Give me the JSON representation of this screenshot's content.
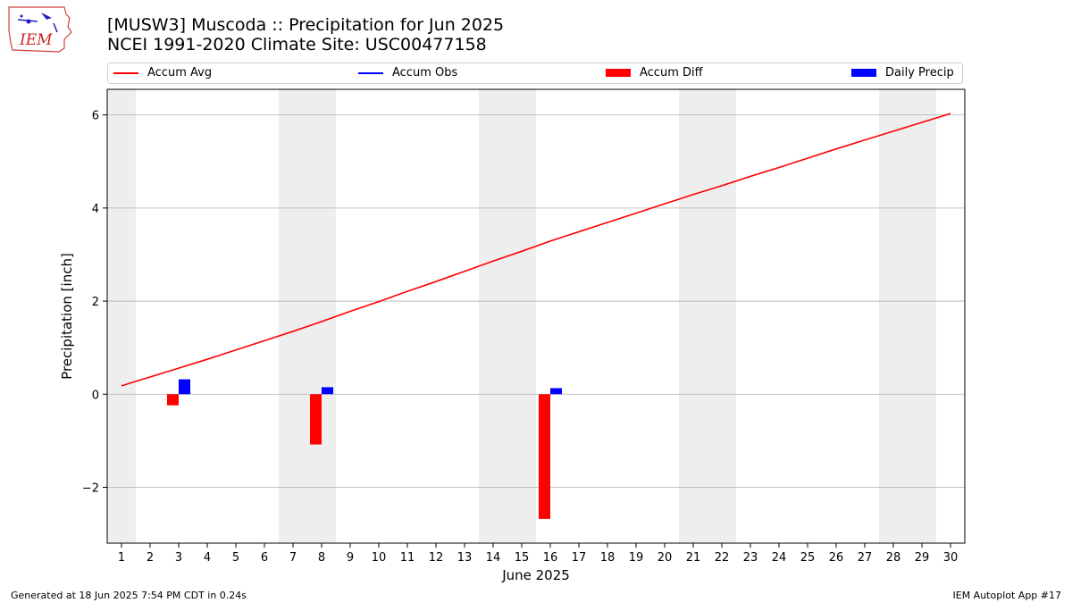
{
  "header": {
    "title_line1": "[MUSW3] Muscoda :: Precipitation for Jun 2025",
    "title_line2": "NCEI 1991-2020 Climate Site: USC00477158",
    "logo_text": "IEM"
  },
  "legend": [
    {
      "label": "Accum Avg",
      "color": "#ff0000",
      "kind": "line"
    },
    {
      "label": "Accum Obs",
      "color": "#0000ff",
      "kind": "line"
    },
    {
      "label": "Accum Diff",
      "color": "#ff0000",
      "kind": "bar"
    },
    {
      "label": "Daily Precip",
      "color": "#0000ff",
      "kind": "bar"
    }
  ],
  "footer": {
    "left": "Generated at 18 Jun 2025 7:54 PM CDT in 0.24s",
    "right": "IEM Autoplot App #17"
  },
  "chart_data": {
    "type": "bar",
    "xlabel": "June 2025",
    "ylabel": "Precipitation [inch]",
    "xlim": [
      0.5,
      30.5
    ],
    "ylim": [
      -3.2,
      6.55
    ],
    "x": [
      1,
      2,
      3,
      4,
      5,
      6,
      7,
      8,
      9,
      10,
      11,
      12,
      13,
      14,
      15,
      16,
      17,
      18,
      19,
      20,
      21,
      22,
      23,
      24,
      25,
      26,
      27,
      28,
      29,
      30
    ],
    "yticks": [
      -2,
      0,
      2,
      4,
      6
    ],
    "ytick_labels": [
      "−2",
      "0",
      "2",
      "4",
      "6"
    ],
    "weekend_bands": [
      [
        0.5,
        1.5
      ],
      [
        6.5,
        8.5
      ],
      [
        13.5,
        15.5
      ],
      [
        20.5,
        22.5
      ],
      [
        27.5,
        29.5
      ]
    ],
    "grid": "y",
    "series": [
      {
        "name": "Accum Avg",
        "type": "line",
        "color": "#ff0000",
        "x": [
          1,
          2,
          3,
          4,
          5,
          6,
          7,
          8,
          9,
          10,
          11,
          12,
          13,
          14,
          15,
          16,
          17,
          18,
          19,
          20,
          21,
          22,
          23,
          24,
          25,
          26,
          27,
          28,
          29,
          30
        ],
        "values": [
          0.18,
          0.37,
          0.56,
          0.75,
          0.95,
          1.15,
          1.35,
          1.56,
          1.78,
          1.99,
          2.21,
          2.42,
          2.64,
          2.86,
          3.07,
          3.29,
          3.49,
          3.69,
          3.89,
          4.09,
          4.29,
          4.48,
          4.68,
          4.87,
          5.07,
          5.27,
          5.46,
          5.65,
          5.84,
          6.03
        ]
      },
      {
        "name": "Accum Diff",
        "type": "bar",
        "color": "#ff0000",
        "x": [
          3,
          8,
          16
        ],
        "values": [
          -0.24,
          -1.08,
          -2.68
        ]
      },
      {
        "name": "Daily Precip",
        "type": "bar",
        "color": "#0000ff",
        "x": [
          3,
          8,
          16
        ],
        "values": [
          0.32,
          0.15,
          0.13
        ]
      }
    ]
  }
}
